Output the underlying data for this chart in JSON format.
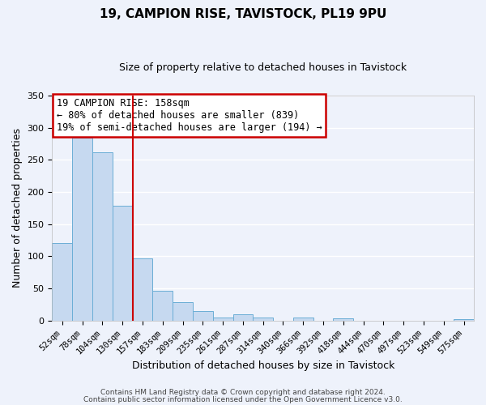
{
  "title": "19, CAMPION RISE, TAVISTOCK, PL19 9PU",
  "subtitle": "Size of property relative to detached houses in Tavistock",
  "xlabel": "Distribution of detached houses by size in Tavistock",
  "ylabel": "Number of detached properties",
  "bar_labels": [
    "52sqm",
    "78sqm",
    "104sqm",
    "130sqm",
    "157sqm",
    "183sqm",
    "209sqm",
    "235sqm",
    "261sqm",
    "287sqm",
    "314sqm",
    "340sqm",
    "366sqm",
    "392sqm",
    "418sqm",
    "444sqm",
    "470sqm",
    "497sqm",
    "523sqm",
    "549sqm",
    "575sqm"
  ],
  "bar_values": [
    120,
    285,
    262,
    178,
    96,
    46,
    29,
    15,
    5,
    9,
    5,
    0,
    4,
    0,
    3,
    0,
    0,
    0,
    0,
    0,
    2
  ],
  "bar_color": "#c6d9f0",
  "bar_edge_color": "#6baed6",
  "annotation_title": "19 CAMPION RISE: 158sqm",
  "annotation_line1": "← 80% of detached houses are smaller (839)",
  "annotation_line2": "19% of semi-detached houses are larger (194) →",
  "annotation_box_facecolor": "#ffffff",
  "annotation_box_edgecolor": "#cc0000",
  "vline_color": "#cc0000",
  "vline_x": 3.5,
  "ylim": [
    0,
    350
  ],
  "yticks": [
    0,
    50,
    100,
    150,
    200,
    250,
    300,
    350
  ],
  "footer1": "Contains HM Land Registry data © Crown copyright and database right 2024.",
  "footer2": "Contains public sector information licensed under the Open Government Licence v3.0.",
  "background_color": "#eef2fb",
  "plot_bg_color": "#eef2fb",
  "grid_color": "#ffffff",
  "title_fontsize": 11,
  "subtitle_fontsize": 9,
  "tick_fontsize": 7.5,
  "ylabel_fontsize": 9,
  "xlabel_fontsize": 9,
  "annotation_fontsize": 8.5,
  "footer_fontsize": 6.5
}
